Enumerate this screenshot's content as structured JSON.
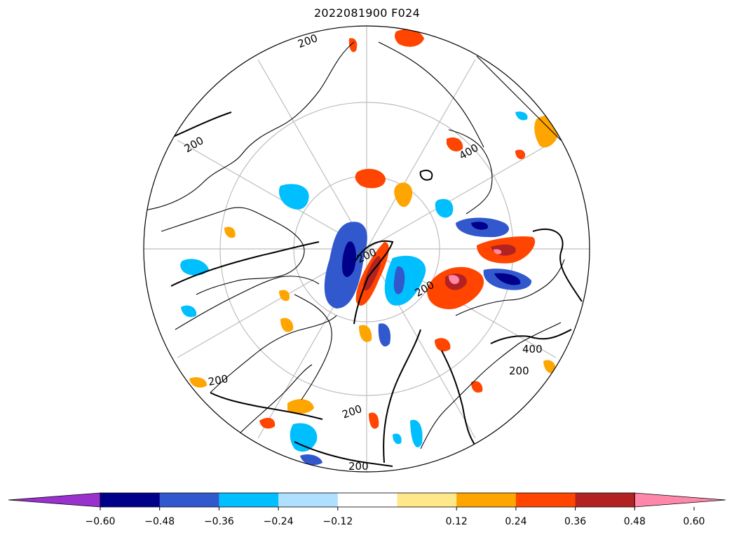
{
  "title": "2022081900 F024",
  "colorbar": {
    "colors": {
      "extend_min": "#9932cc",
      "bin_1": "#00008b",
      "bin_2": "#3158cc",
      "bin_3": "#00bfff",
      "bin_4": "#b0e0ff",
      "bin_5": "#ffffff",
      "bin_6": "#ffe88a",
      "bin_7": "#ffa500",
      "bin_8": "#ff4500",
      "bin_9": "#b22222",
      "extend_max": "#ff88aa"
    },
    "tick_labels": [
      "−0.60",
      "−0.48",
      "−0.36",
      "−0.24",
      "−0.12",
      "0.12",
      "0.24",
      "0.36",
      "0.48",
      "0.60"
    ]
  },
  "contour_labels": {
    "center": "200",
    "north_left": "200",
    "west_upper": "200",
    "east_upper": "400",
    "east_mid": "200",
    "east_lower": "400",
    "east_bottom": "200",
    "south_left": "200",
    "south_mid": "200",
    "south_bottom": "200"
  },
  "map_style": {
    "graticule_color": "#bdbdbd",
    "coastline_color": "#000000",
    "contour_color": "#000000"
  }
}
